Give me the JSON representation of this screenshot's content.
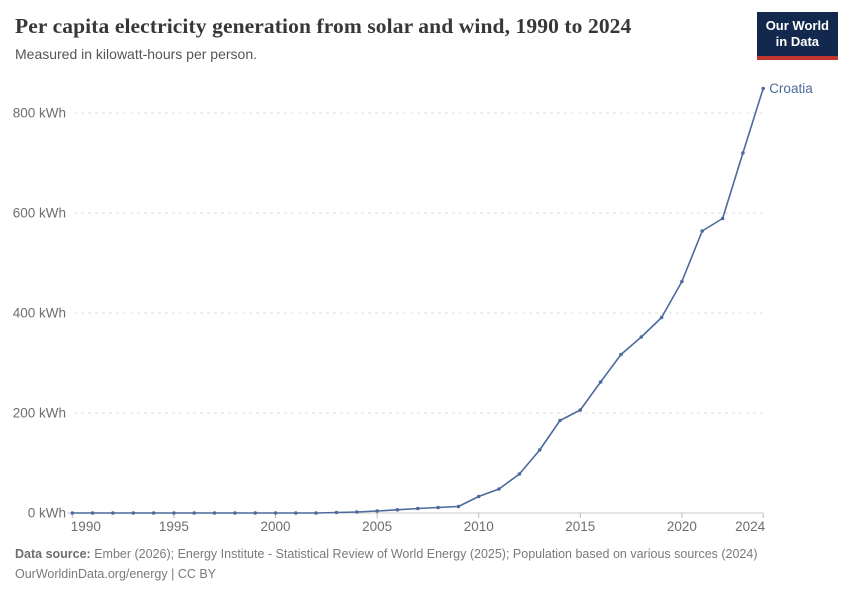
{
  "header": {
    "title": "Per capita electricity generation from solar and wind, 1990 to 2024",
    "subtitle": "Measured in kilowatt-hours per person."
  },
  "logo": {
    "line1": "Our World",
    "line2": "in Data",
    "bg_color": "#12294d",
    "accent_color": "#c0362c"
  },
  "chart_data": {
    "type": "line",
    "title": "Per capita electricity generation from solar and wind, 1990 to 2024",
    "xlabel": "",
    "ylabel": "kilowatt-hours per person",
    "xlim": [
      1990,
      2024
    ],
    "ylim": [
      0,
      860
    ],
    "grid": "horizontal-dashed",
    "legend_position": "end-of-line-label",
    "x": [
      1990,
      1991,
      1992,
      1993,
      1994,
      1995,
      1996,
      1997,
      1998,
      1999,
      2000,
      2001,
      2002,
      2003,
      2004,
      2005,
      2006,
      2007,
      2008,
      2009,
      2010,
      2011,
      2012,
      2013,
      2014,
      2015,
      2016,
      2017,
      2018,
      2019,
      2020,
      2021,
      2022,
      2023,
      2024
    ],
    "series": [
      {
        "name": "Croatia",
        "color": "#4c6a9c",
        "values": [
          0,
          0,
          0,
          0,
          0,
          0,
          0,
          0,
          0,
          0,
          0,
          0,
          0,
          1,
          2,
          4,
          6.5,
          9,
          11,
          13,
          33,
          48,
          78,
          126,
          185,
          206,
          262,
          317,
          352,
          391,
          463,
          564,
          589,
          720,
          849
        ]
      }
    ],
    "x_ticks": [
      {
        "value": 1990,
        "label": "1990",
        "align": "start"
      },
      {
        "value": 1995,
        "label": "1995",
        "align": "middle"
      },
      {
        "value": 2000,
        "label": "2000",
        "align": "middle"
      },
      {
        "value": 2005,
        "label": "2005",
        "align": "middle"
      },
      {
        "value": 2010,
        "label": "2010",
        "align": "middle"
      },
      {
        "value": 2015,
        "label": "2015",
        "align": "middle"
      },
      {
        "value": 2020,
        "label": "2020",
        "align": "middle"
      },
      {
        "value": 2024,
        "label": "2024",
        "align": "end"
      }
    ],
    "y_ticks": [
      {
        "value": 0,
        "label": "0 kWh"
      },
      {
        "value": 200,
        "label": "200 kWh"
      },
      {
        "value": 400,
        "label": "400 kWh"
      },
      {
        "value": 600,
        "label": "600 kWh"
      },
      {
        "value": 800,
        "label": "800 kWh"
      }
    ],
    "colors": {
      "grid": "#dcdcdc",
      "axis_line": "#c8c8c8",
      "tick_mark": "#b8b8b8",
      "tick_text": "#6e6e6e"
    }
  },
  "footer": {
    "source_label": "Data source:",
    "source_text": " Ember (2026); Energy Institute - Statistical Review of World Energy (2025); Population based on various sources (2024)",
    "link_text": "OurWorldinData.org/energy",
    "license_text": " | CC BY"
  }
}
